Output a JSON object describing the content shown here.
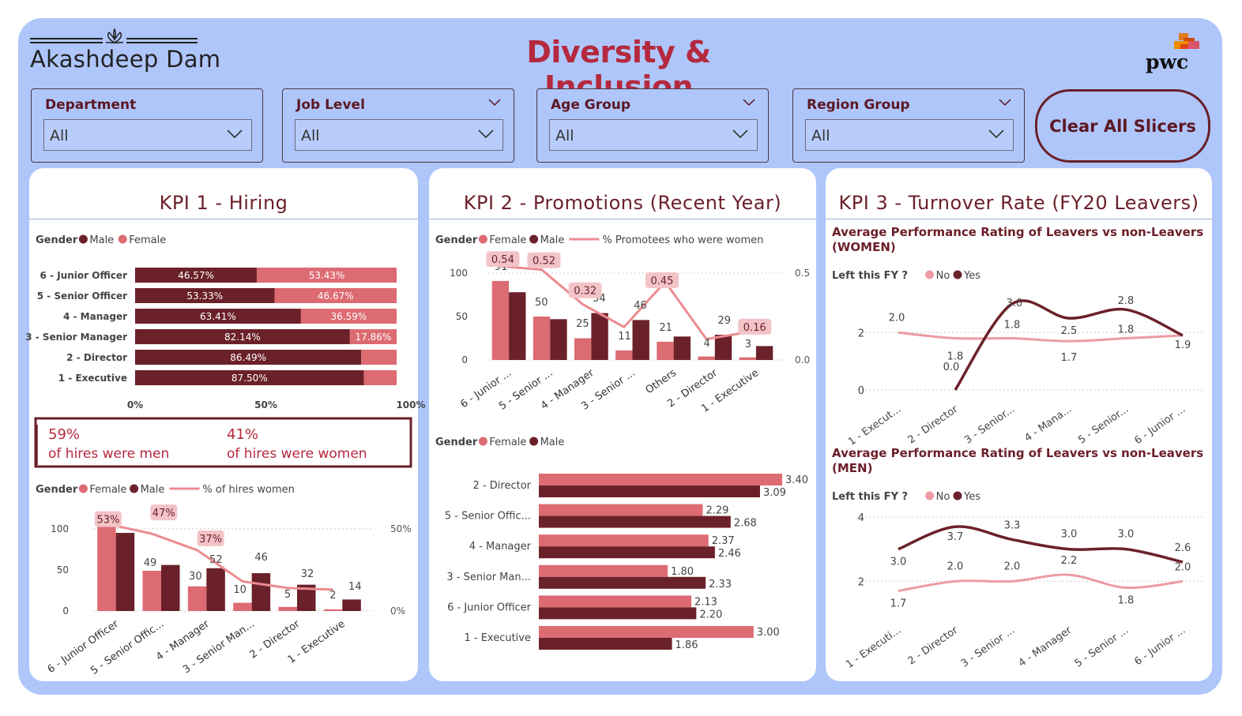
{
  "brand": {
    "name": "Akashdeep Dam",
    "logo_icon": "lotus-icon",
    "partner_logo": "pwc"
  },
  "title": "Diversity & Inclusion",
  "slicers": [
    {
      "label": "Department",
      "value": "All"
    },
    {
      "label": "Job Level",
      "value": "All"
    },
    {
      "label": "Age Group",
      "value": "All"
    },
    {
      "label": "Region Group",
      "value": "All"
    }
  ],
  "clear_button": "Clear All Slicers",
  "colors": {
    "male": "#6b2129",
    "female": "#dd6b72",
    "line": "#ec8b91",
    "no": "#ec9ba3",
    "yes": "#6b2129",
    "accent": "#b5293e"
  },
  "kpi1": {
    "title": "KPI 1 - Hiring",
    "kpi_text": {
      "men_pct": "59%",
      "men_label": "of hires were men",
      "women_pct": "41%",
      "women_label": "of hires were women"
    }
  },
  "kpi2": {
    "title": "KPI 2 - Promotions (Recent Year)"
  },
  "kpi3": {
    "title": "KPI 3 - Turnover Rate (FY20 Leavers)"
  },
  "chart_data": [
    {
      "id": "hiring_split",
      "type": "bar",
      "orientation": "horizontal-stacked-100",
      "legend_title": "Gender",
      "legend": [
        "Male",
        "Female"
      ],
      "categories": [
        "6 - Junior Officer",
        "5 - Senior Officer",
        "4 - Manager",
        "3 - Senior Manager",
        "2 - Director",
        "1 - Executive"
      ],
      "series": [
        {
          "name": "Male",
          "values": [
            46.57,
            53.33,
            63.41,
            82.14,
            86.49,
            87.5
          ],
          "labels": [
            "46.57%",
            "53.33%",
            "63.41%",
            "82.14%",
            "86.49%",
            "87.50%"
          ]
        },
        {
          "name": "Female",
          "values": [
            53.43,
            46.67,
            36.59,
            17.86,
            13.51,
            12.5
          ],
          "labels": [
            "53.43%",
            "46.67%",
            "36.59%",
            "17.86%",
            "",
            ""
          ]
        }
      ],
      "x_ticks": [
        "0%",
        "50%",
        "100%"
      ]
    },
    {
      "id": "hiring_counts",
      "type": "bar",
      "orientation": "vertical-grouped-with-line",
      "legend_title": "Gender",
      "legend": [
        "Female",
        "Male",
        "% of hires women"
      ],
      "categories": [
        "6 - Junior Officer",
        "5 - Senior Offic...",
        "4 - Manager",
        "3 - Senior Man...",
        "2 - Director",
        "1 - Executive"
      ],
      "series": [
        {
          "name": "Female",
          "values": [
            109,
            49,
            30,
            10,
            5,
            2
          ]
        },
        {
          "name": "Male",
          "values": [
            95,
            56,
            52,
            46,
            32,
            14
          ]
        },
        {
          "name": "% of hires women",
          "values": [
            0.53,
            0.47,
            0.37,
            0.18,
            0.14,
            0.13
          ],
          "labels": [
            "53%",
            "47%",
            "37%",
            "",
            "",
            ""
          ]
        }
      ],
      "count_labels": [
        {
          "category": "6 - Junior Officer",
          "text": "109"
        },
        {
          "category": "5 - Senior Offic...",
          "text": "49"
        },
        {
          "category": "4 - Manager",
          "text": "30"
        },
        {
          "category": "4 - Manager",
          "text": "52"
        },
        {
          "category": "3 - Senior Man...",
          "text": "10"
        },
        {
          "category": "3 - Senior Man...",
          "text": "46"
        },
        {
          "category": "2 - Director",
          "text": "5"
        },
        {
          "category": "2 - Director",
          "text": "32"
        },
        {
          "category": "1 - Executive",
          "text": "2"
        },
        {
          "category": "1 - Executive",
          "text": "14"
        }
      ],
      "y_ticks": [
        "0",
        "50",
        "100"
      ],
      "y2_ticks": [
        "0%",
        "50%"
      ],
      "ylim": [
        0,
        120
      ],
      "y2lim": [
        0,
        0.6
      ]
    },
    {
      "id": "promotions_counts",
      "type": "bar",
      "orientation": "vertical-grouped-with-line",
      "legend_title": "Gender",
      "legend": [
        "Female",
        "Male",
        "% Promotees who were women"
      ],
      "categories": [
        "6 - Junior ...",
        "5 - Senior ...",
        "4 - Manager",
        "3 - Senior ...",
        "Others",
        "2 - Director",
        "1 - Executive"
      ],
      "series": [
        {
          "name": "Female",
          "values": [
            91,
            50,
            25,
            11,
            21,
            4,
            3
          ]
        },
        {
          "name": "Male",
          "values": [
            78,
            47,
            54,
            46,
            27,
            29,
            16
          ]
        },
        {
          "name": "% Promotees who were women",
          "values": [
            0.54,
            0.52,
            0.32,
            0.19,
            0.45,
            0.12,
            0.16
          ],
          "labels": [
            "0.54",
            "0.52",
            "0.32",
            "",
            "0.45",
            "",
            "0.16"
          ]
        }
      ],
      "count_labels": [
        {
          "category": "6 - Junior ...",
          "text": "91"
        },
        {
          "category": "5 - Senior ...",
          "text": "50"
        },
        {
          "category": "4 - Manager",
          "text": "25"
        },
        {
          "category": "4 - Manager",
          "text": "54"
        },
        {
          "category": "3 - Senior ...",
          "text": "11"
        },
        {
          "category": "3 - Senior ...",
          "text": "46"
        },
        {
          "category": "Others",
          "text": "21"
        },
        {
          "category": "2 - Director",
          "text": "4"
        },
        {
          "category": "2 - Director",
          "text": "29"
        },
        {
          "category": "1 - Executive",
          "text": "3"
        }
      ],
      "y_ticks": [
        "0",
        "50",
        "100"
      ],
      "y2_ticks": [
        "0.0",
        "0.5"
      ],
      "ylim": [
        0,
        100
      ],
      "y2lim": [
        0,
        0.5
      ]
    },
    {
      "id": "promotions_rating",
      "type": "bar",
      "orientation": "horizontal-grouped",
      "legend_title": "Gender",
      "legend": [
        "Female",
        "Male"
      ],
      "categories": [
        "2 - Director",
        "5 - Senior Offic...",
        "4 - Manager",
        "3 - Senior Man...",
        "6 - Junior Officer",
        "1 - Executive"
      ],
      "series": [
        {
          "name": "Female",
          "values": [
            3.4,
            2.29,
            2.37,
            1.8,
            2.13,
            3.0
          ],
          "labels": [
            "3.40",
            "2.29",
            "2.37",
            "1.80",
            "2.13",
            "3.00"
          ]
        },
        {
          "name": "Male",
          "values": [
            3.09,
            2.68,
            2.46,
            2.33,
            2.2,
            1.86
          ],
          "labels": [
            "3.09",
            "2.68",
            "2.46",
            "2.33",
            "2.20",
            "1.86"
          ]
        }
      ],
      "xlim": [
        0,
        3.5
      ]
    },
    {
      "id": "turnover_women",
      "type": "line",
      "title": "Average Performance Rating of Leavers vs non-Leavers (WOMEN)",
      "legend_title": "Left this FY ?",
      "legend": [
        "No",
        "Yes"
      ],
      "categories": [
        "1 - Execut...",
        "2 - Director",
        "3 - Senior...",
        "4 - Mana...",
        "5 - Senior...",
        "6 - Junior ..."
      ],
      "series": [
        {
          "name": "No",
          "values": [
            2.0,
            1.8,
            1.8,
            1.7,
            1.8,
            1.9
          ],
          "labels": [
            "2.0",
            "1.8",
            "1.8",
            "1.7",
            "1.8",
            ""
          ]
        },
        {
          "name": "Yes",
          "values": [
            null,
            0.0,
            3.0,
            2.5,
            2.8,
            1.9
          ],
          "labels": [
            "",
            "0.0",
            "3.0",
            "2.5",
            "2.8",
            "1.9"
          ]
        }
      ],
      "y_ticks": [
        "0",
        "2"
      ],
      "ylim": [
        0,
        3.3
      ]
    },
    {
      "id": "turnover_men",
      "type": "line",
      "title": "Average Performance Rating of Leavers vs non-Leavers (MEN)",
      "legend_title": "Left this FY ?",
      "legend": [
        "No",
        "Yes"
      ],
      "categories": [
        "1 - Executi...",
        "2 - Director",
        "3 - Senior ...",
        "4 - Manager",
        "5 - Senior ...",
        "6 - Junior ..."
      ],
      "series": [
        {
          "name": "No",
          "values": [
            1.7,
            2.0,
            2.0,
            2.2,
            1.8,
            2.0
          ],
          "labels": [
            "1.7",
            "2.0",
            "2.0",
            "2.2",
            "1.8",
            "2.0"
          ]
        },
        {
          "name": "Yes",
          "values": [
            3.0,
            3.7,
            3.3,
            3.0,
            3.0,
            2.6
          ],
          "labels": [
            "3.0",
            "3.7",
            "3.3",
            "3.0",
            "3.0",
            "2.6"
          ]
        }
      ],
      "y_ticks": [
        "2",
        "4"
      ],
      "ylim": [
        1,
        4
      ]
    }
  ]
}
